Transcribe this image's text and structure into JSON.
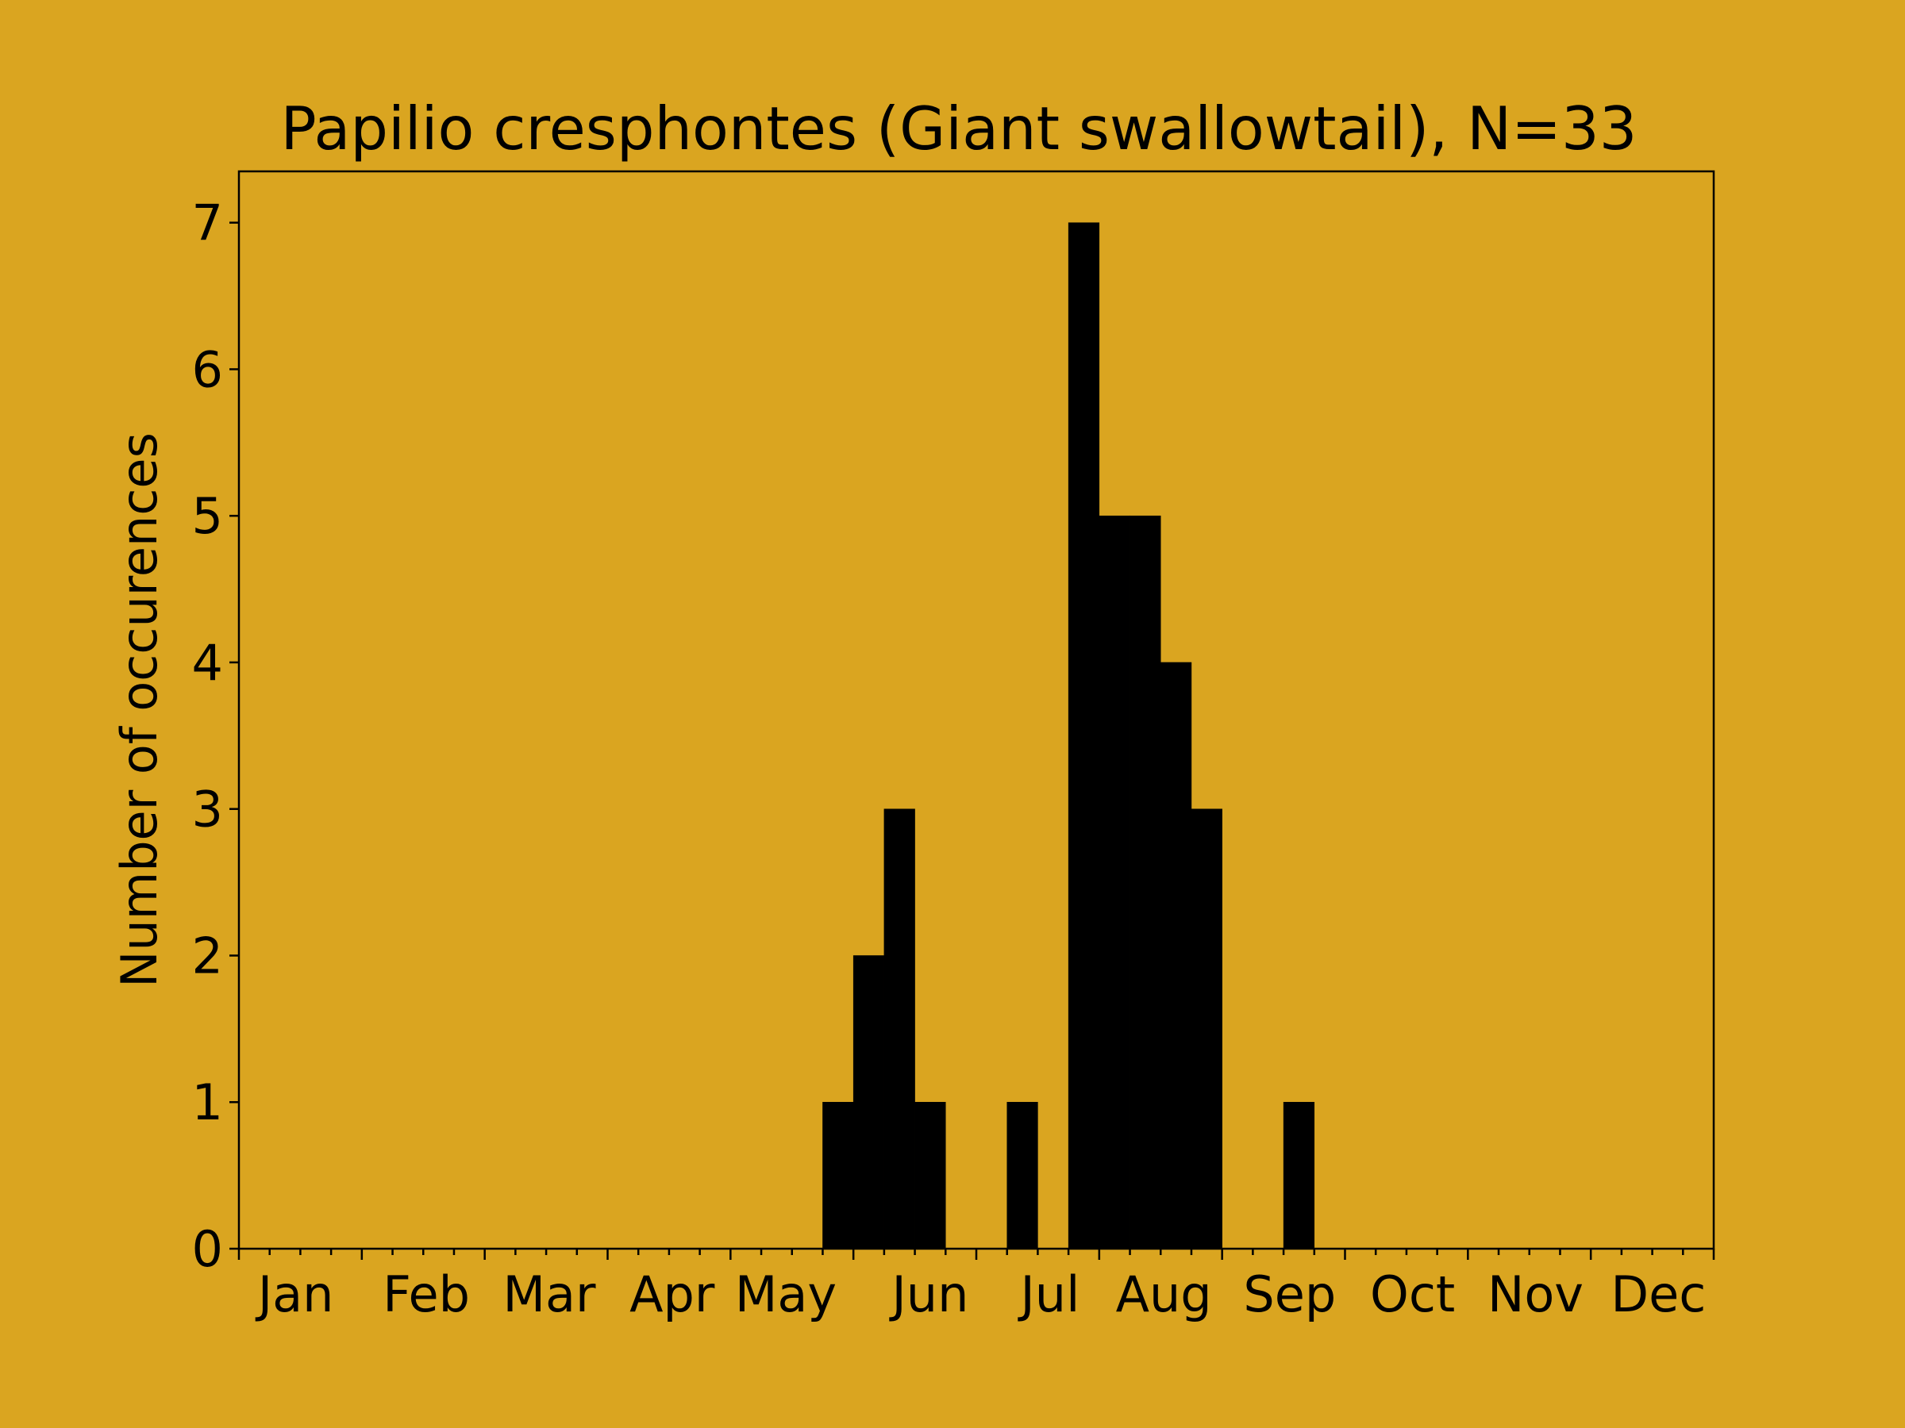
{
  "chart_data": {
    "type": "bar",
    "title": "Papilio cresphontes (Giant swallowtail), N=33",
    "xlabel": "",
    "ylabel": "Number of occurences",
    "ylim": [
      0,
      7.35
    ],
    "xlim": [
      0,
      48
    ],
    "yticks": [
      0,
      1,
      2,
      3,
      4,
      5,
      6,
      7
    ],
    "month_labels": [
      "Jan",
      "Feb",
      "Mar",
      "Apr",
      "May",
      "Jun",
      "Jul",
      "Aug",
      "Sep",
      "Oct",
      "Nov",
      "Dec"
    ],
    "month_label_positions": [
      1.85,
      6.1,
      10.1,
      14.1,
      17.8,
      22.5,
      26.4,
      30.1,
      34.2,
      38.2,
      42.2,
      46.2
    ],
    "bin_width": 1,
    "values": [
      0,
      0,
      0,
      0,
      0,
      0,
      0,
      0,
      0,
      0,
      0,
      0,
      0,
      0,
      0,
      0,
      0,
      0,
      0,
      1,
      2,
      3,
      1,
      0,
      0,
      1,
      0,
      7,
      5,
      5,
      4,
      3,
      0,
      0,
      1,
      0,
      0,
      0,
      0,
      0,
      0,
      0,
      0,
      0,
      0,
      0,
      0,
      0
    ],
    "bar_color": "#000000",
    "background_color": "#DAA520",
    "grid": false,
    "legend": "none"
  }
}
